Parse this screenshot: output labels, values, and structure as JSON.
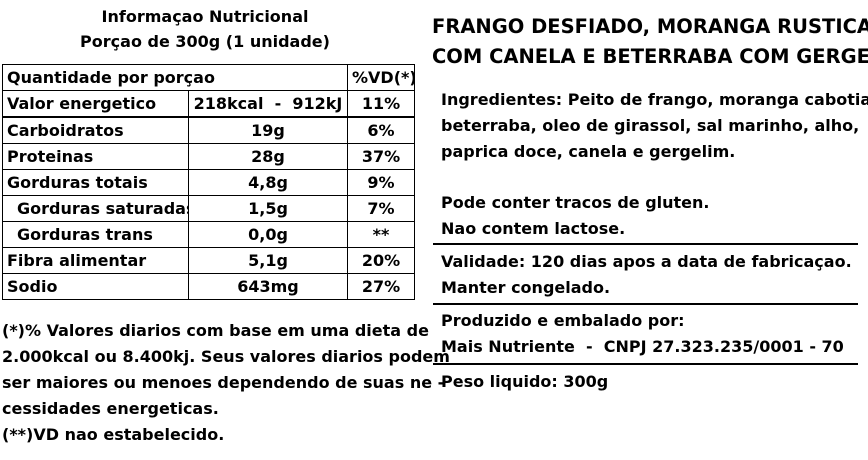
{
  "nutrition": {
    "title": "Informaçao Nutricional",
    "portion": "Porçao de 300g (1 unidade)",
    "header": {
      "label": "Quantidade por porçao",
      "vd": "%VD(*)"
    },
    "rows": [
      {
        "name": "Valor energetico",
        "amount": "218kcal  -  912kJ",
        "vd": "11%"
      },
      {
        "name": "Carboidratos",
        "amount": "19g",
        "vd": "6%"
      },
      {
        "name": "Proteinas",
        "amount": "28g",
        "vd": "37%"
      },
      {
        "name": "Gorduras totais",
        "amount": "4,8g",
        "vd": "9%"
      },
      {
        "name": "Gorduras saturadas",
        "amount": "1,5g",
        "vd": "7%"
      },
      {
        "name": "Gorduras trans",
        "amount": "0,0g",
        "vd": "**"
      },
      {
        "name": "Fibra alimentar",
        "amount": "5,1g",
        "vd": "20%"
      },
      {
        "name": "Sodio",
        "amount": "643mg",
        "vd": "27%"
      }
    ],
    "footnote": [
      "(*)% Valores diarios com base em uma dieta de",
      "2.000kcal ou 8.400kj. Seus valores diarios podem",
      "ser maiores ou menoes dependendo de suas ne -",
      "cessidades energeticas.",
      "(**)VD nao estabelecido."
    ]
  },
  "product": {
    "title_line1": "FRANGO DESFIADO, MORANGA RUSTICA",
    "title_line2": "COM CANELA E BETERRABA COM GERGELIM",
    "ingredients": [
      "Ingredientes: Peito de frango, moranga cabotia,",
      "beterraba, oleo de girassol, sal marinho, alho,",
      "paprica doce, canela e gergelim."
    ],
    "allergens": [
      "Pode conter tracos de gluten.",
      "Nao contem lactose."
    ],
    "validity": [
      "Validade: 120 dias apos a data de fabricaçao.",
      "Manter congelado."
    ],
    "producer": [
      "Produzido e embalado por:",
      "Mais Nutriente  -  CNPJ 27.323.235/0001 - 70"
    ],
    "net_weight": "Peso liquido: 300g"
  }
}
